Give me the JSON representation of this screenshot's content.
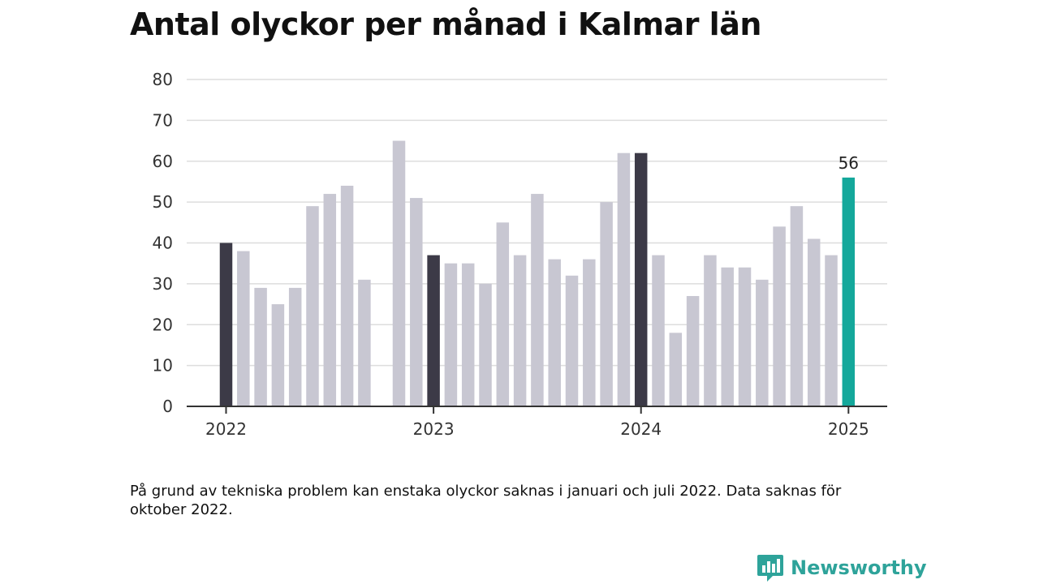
{
  "title": "Antal olyckor per månad i Kalmar län",
  "note": "På grund av tekniska problem kan enstaka olyckor saknas i januari och juli 2022. Data saknas för oktober 2022.",
  "brand": {
    "name": "Newsworthy",
    "icon": "newsworthy-logo-icon"
  },
  "colors": {
    "highlight": "#3c3a47",
    "default": "#c8c7d2",
    "latest": "#14a89b",
    "grid": "#dddddd",
    "axis": "#333333"
  },
  "chart_data": {
    "type": "bar",
    "title": "Antal olyckor per månad i Kalmar län",
    "xlabel": "",
    "ylabel": "",
    "ylim": [
      0,
      80
    ],
    "yticks": [
      "0",
      "10",
      "20",
      "30",
      "40",
      "50",
      "60",
      "70",
      "80"
    ],
    "xticks": [
      "2022",
      "2023",
      "2024",
      "2025"
    ],
    "grid": true,
    "categories": [
      "2022-01",
      "2022-02",
      "2022-03",
      "2022-04",
      "2022-05",
      "2022-06",
      "2022-07",
      "2022-08",
      "2022-09",
      "2022-10",
      "2022-11",
      "2022-12",
      "2023-01",
      "2023-02",
      "2023-03",
      "2023-04",
      "2023-05",
      "2023-06",
      "2023-07",
      "2023-08",
      "2023-09",
      "2023-10",
      "2023-11",
      "2023-12",
      "2024-01",
      "2024-02",
      "2024-03",
      "2024-04",
      "2024-05",
      "2024-06",
      "2024-07",
      "2024-08",
      "2024-09",
      "2024-10",
      "2024-11",
      "2024-12",
      "2025-01"
    ],
    "values": [
      40,
      38,
      29,
      25,
      29,
      49,
      52,
      54,
      31,
      null,
      65,
      51,
      37,
      35,
      35,
      30,
      45,
      37,
      52,
      36,
      32,
      36,
      50,
      62,
      62,
      37,
      18,
      27,
      37,
      34,
      34,
      31,
      44,
      49,
      41,
      37,
      56
    ],
    "highlighted": [
      "2022-01",
      "2023-01",
      "2024-01"
    ],
    "latest": "2025-01",
    "data_labels": [
      {
        "category": "2025-01",
        "text": "56"
      }
    ]
  }
}
